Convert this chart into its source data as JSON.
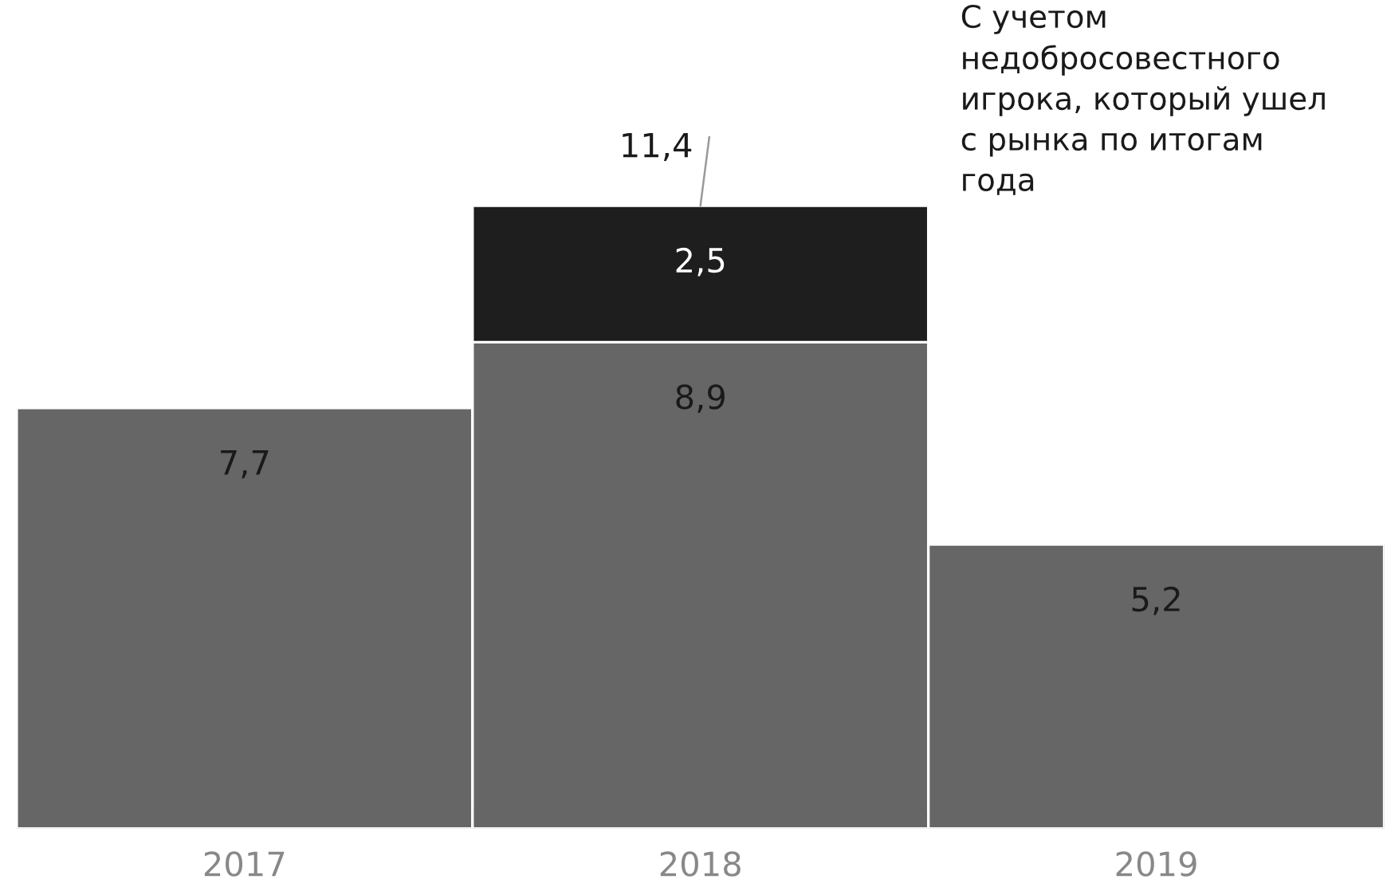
{
  "chart_data": {
    "type": "bar",
    "stacked": true,
    "categories": [
      "2017",
      "2018",
      "2019"
    ],
    "series": [
      {
        "color": "#666666",
        "values": [
          7.7,
          8.9,
          5.2
        ],
        "value_labels": [
          "7,7",
          "8,9",
          "5,2"
        ]
      },
      {
        "color": "#1e1e1e",
        "values": [
          null,
          2.5,
          null
        ],
        "value_labels": [
          null,
          "2,5",
          null
        ]
      }
    ],
    "totals": [
      null,
      "11,4",
      null
    ],
    "tick_labels": "x",
    "annotations": [
      "С учетом\nнедобросовестного\nигрока, который ушел\nс рынка по итогам\nгода"
    ]
  }
}
